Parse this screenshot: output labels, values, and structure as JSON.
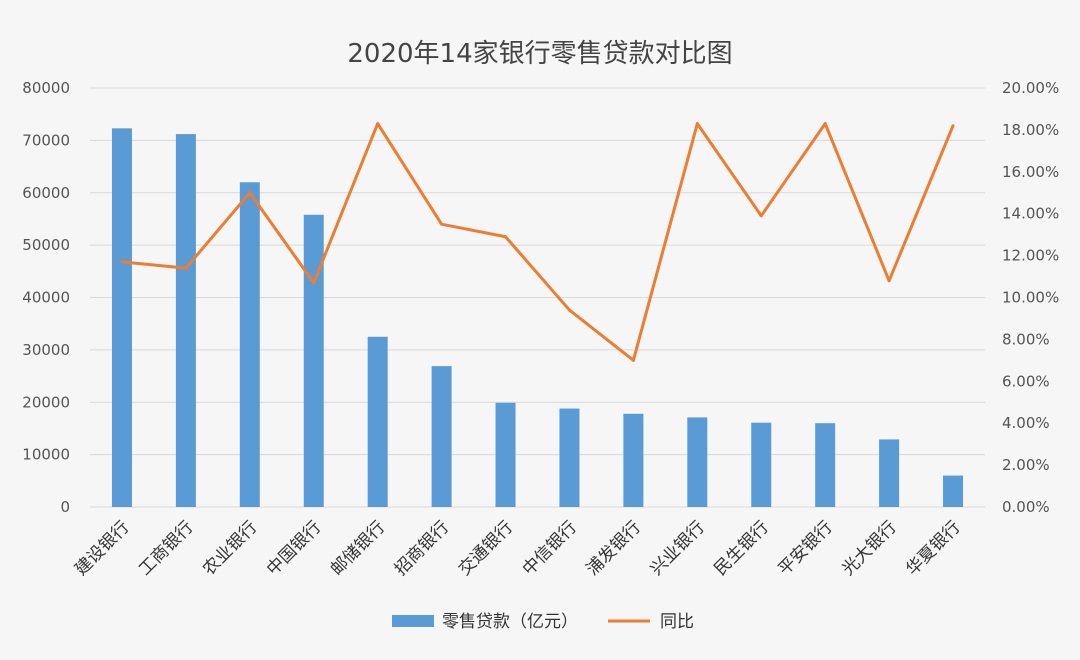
{
  "chart_data": {
    "type": "bar+line",
    "title": "2020年14家银行零售贷款对比图",
    "categories": [
      "建设银行",
      "工商银行",
      "农业银行",
      "中国银行",
      "邮储银行",
      "招商银行",
      "交通银行",
      "中信银行",
      "浦发银行",
      "兴业银行",
      "民生银行",
      "平安银行",
      "光大银行",
      "华夏银行"
    ],
    "series": [
      {
        "name": "零售贷款（亿元）",
        "type": "bar",
        "axis": "left",
        "color": "#5b9bd5",
        "values": [
          72300,
          71200,
          62000,
          55800,
          32500,
          26900,
          19900,
          18800,
          17800,
          17100,
          16100,
          16000,
          12900,
          6000
        ]
      },
      {
        "name": "同比",
        "type": "line",
        "axis": "right",
        "color": "#ed7d31",
        "values": [
          11.7,
          11.4,
          15.0,
          10.7,
          18.3,
          13.5,
          12.9,
          9.4,
          7.0,
          18.3,
          13.9,
          18.3,
          10.8,
          18.2
        ]
      }
    ],
    "y_left": {
      "min": 0,
      "max": 80000,
      "step": 10000,
      "ticks": [
        "0",
        "10000",
        "20000",
        "30000",
        "40000",
        "50000",
        "60000",
        "70000",
        "80000"
      ]
    },
    "y_right": {
      "min": 0,
      "max": 20,
      "step": 2,
      "ticks": [
        "0.00%",
        "2.00%",
        "4.00%",
        "6.00%",
        "8.00%",
        "10.00%",
        "12.00%",
        "14.00%",
        "16.00%",
        "18.00%",
        "20.00%"
      ]
    },
    "grid": true,
    "legend_position": "bottom"
  }
}
